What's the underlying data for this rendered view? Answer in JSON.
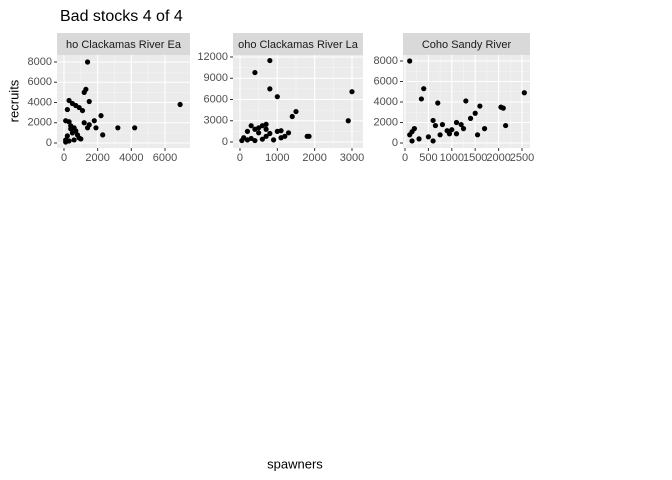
{
  "title": "Bad stocks 4 of 4",
  "x_label": "spawners",
  "y_label": "recruits",
  "chart_data": [
    {
      "type": "scatter",
      "title": "ho Clackamas River Ea",
      "color": "#000000",
      "grid": true,
      "xlim": [
        -416,
        7487
      ],
      "ylim": [
        -494,
        8691
      ],
      "xticks": [
        0,
        2000,
        4000,
        6000
      ],
      "yticks": [
        0,
        2000,
        4000,
        6000,
        8000
      ],
      "x": [
        1400,
        1300,
        1200,
        300,
        500,
        700,
        900,
        200,
        1100,
        1500,
        100,
        300,
        1200,
        1500,
        1800,
        2200,
        1900,
        1400,
        3200,
        4200,
        2300,
        400,
        600,
        700,
        500,
        800,
        900,
        1000,
        200,
        100,
        100,
        300,
        600,
        400,
        6900
      ],
      "values": [
        8000,
        5300,
        5000,
        4200,
        3900,
        3700,
        3500,
        3300,
        3200,
        4100,
        2200,
        2100,
        2000,
        1800,
        2200,
        2700,
        1500,
        1500,
        1500,
        1500,
        800,
        1700,
        1500,
        1200,
        1000,
        800,
        500,
        400,
        700,
        300,
        100,
        200,
        300,
        1400,
        3800
      ]
    },
    {
      "type": "scatter",
      "title": "oho Clackamas River La",
      "color": "#000000",
      "grid": true,
      "xlim": [
        -187,
        3295
      ],
      "ylim": [
        -847,
        12282
      ],
      "xticks": [
        0,
        1000,
        2000,
        3000
      ],
      "yticks": [
        0,
        3000,
        6000,
        9000,
        12000
      ],
      "x": [
        800,
        400,
        800,
        1000,
        3000,
        1500,
        1400,
        2900,
        100,
        200,
        50,
        300,
        400,
        500,
        600,
        700,
        500,
        700,
        800,
        900,
        1000,
        1100,
        1200,
        1300,
        1100,
        1800,
        1850,
        600,
        400,
        300,
        200,
        700
      ],
      "values": [
        11500,
        9800,
        7500,
        6400,
        7100,
        4300,
        3600,
        3000,
        600,
        300,
        200,
        2300,
        1800,
        2000,
        2300,
        2500,
        1300,
        800,
        1200,
        300,
        1500,
        1600,
        800,
        1300,
        600,
        800,
        800,
        400,
        200,
        500,
        1500,
        1800
      ]
    },
    {
      "type": "scatter",
      "title": "Coho Sandy River",
      "color": "#000000",
      "grid": true,
      "xlim": [
        -43,
        2671
      ],
      "ylim": [
        -488,
        8585
      ],
      "xticks": [
        0,
        500,
        1000,
        1500,
        2000,
        2500
      ],
      "yticks": [
        0,
        2000,
        4000,
        6000,
        8000
      ],
      "x": [
        100,
        400,
        350,
        700,
        1300,
        2550,
        1600,
        1500,
        2050,
        2100,
        1400,
        800,
        600,
        650,
        200,
        100,
        150,
        300,
        500,
        900,
        950,
        1000,
        1100,
        1200,
        1250,
        1100,
        1700,
        2150,
        1550,
        150,
        600,
        750
      ],
      "values": [
        8000,
        5300,
        4300,
        3900,
        4100,
        4900,
        3600,
        2900,
        3500,
        3400,
        2400,
        1800,
        2200,
        1700,
        1400,
        800,
        1100,
        400,
        600,
        1200,
        900,
        1300,
        900,
        1800,
        1400,
        2000,
        1400,
        1700,
        800,
        200,
        200,
        800
      ]
    }
  ]
}
